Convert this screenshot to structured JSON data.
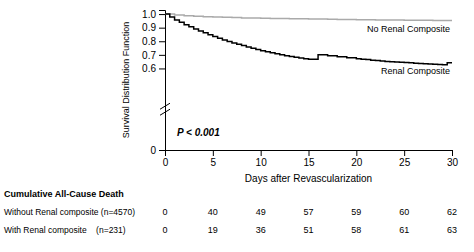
{
  "chart_data": {
    "type": "step",
    "x_label": "Days after Revascularization",
    "y_label": "Survival Distribution Function",
    "xlim": [
      0,
      30
    ],
    "xticks": [
      0,
      5,
      10,
      15,
      20,
      25,
      30
    ],
    "ylim": [
      0.0,
      1.03
    ],
    "yticks": [
      0,
      0.6,
      0.7,
      0.8,
      0.9,
      {
        "value": 1.0,
        "label": "1.0"
      }
    ],
    "grid": false,
    "annotations": [
      "P < 0.001"
    ],
    "series": [
      {
        "name": "No Renal Composite",
        "color": "#aaaaaa",
        "x": [
          0,
          1,
          2,
          3,
          4,
          5,
          6,
          7,
          8,
          9,
          10,
          11,
          12,
          13,
          14,
          15,
          16,
          17,
          18,
          19,
          20,
          21,
          22,
          23,
          24,
          25,
          26,
          27,
          28,
          29,
          30
        ],
        "values": [
          1.0,
          0.993,
          0.988,
          0.984,
          0.98,
          0.978,
          0.976,
          0.974,
          0.972,
          0.971,
          0.969,
          0.968,
          0.967,
          0.966,
          0.965,
          0.964,
          0.963,
          0.962,
          0.961,
          0.96,
          0.959,
          0.958,
          0.957,
          0.957,
          0.956,
          0.955,
          0.955,
          0.954,
          0.953,
          0.953,
          0.952
        ]
      },
      {
        "name": "Renal Composite",
        "color": "#000000",
        "x": [
          0,
          0.5,
          1,
          1.5,
          2,
          2.5,
          3,
          3.5,
          4,
          4.5,
          5,
          5.5,
          6,
          6.5,
          7,
          7.5,
          8,
          8.5,
          9,
          9.5,
          10,
          10.5,
          11,
          11.5,
          12,
          12.5,
          13,
          13.5,
          14,
          14.5,
          15,
          16,
          17,
          18,
          19,
          20,
          20.5,
          21,
          21.5,
          22,
          22.5,
          23,
          23.5,
          24,
          24.5,
          25,
          25.5,
          26,
          26.5,
          27,
          27.5,
          28,
          28.5,
          29,
          29.5,
          30
        ],
        "values": [
          1.0,
          0.978,
          0.957,
          0.94,
          0.922,
          0.906,
          0.891,
          0.876,
          0.862,
          0.848,
          0.835,
          0.822,
          0.81,
          0.799,
          0.788,
          0.778,
          0.768,
          0.758,
          0.749,
          0.74,
          0.731,
          0.723,
          0.715,
          0.708,
          0.701,
          0.694,
          0.688,
          0.682,
          0.677,
          0.672,
          0.667,
          0.7,
          0.693,
          0.686,
          0.679,
          0.672,
          0.668,
          0.665,
          0.661,
          0.658,
          0.655,
          0.652,
          0.649,
          0.647,
          0.645,
          0.643,
          0.641,
          0.639,
          0.637,
          0.635,
          0.633,
          0.631,
          0.629,
          0.628,
          0.641,
          0.64
        ]
      }
    ],
    "table": {
      "title": "Cumulative All-Cause Death",
      "rows": [
        {
          "label": "Without Renal composite (n=4570)",
          "values": [
            0,
            40,
            49,
            57,
            59,
            60,
            62
          ]
        },
        {
          "label": "With Renal composite    (n=231)",
          "values": [
            0,
            19,
            36,
            51,
            58,
            61,
            63
          ]
        }
      ]
    }
  }
}
